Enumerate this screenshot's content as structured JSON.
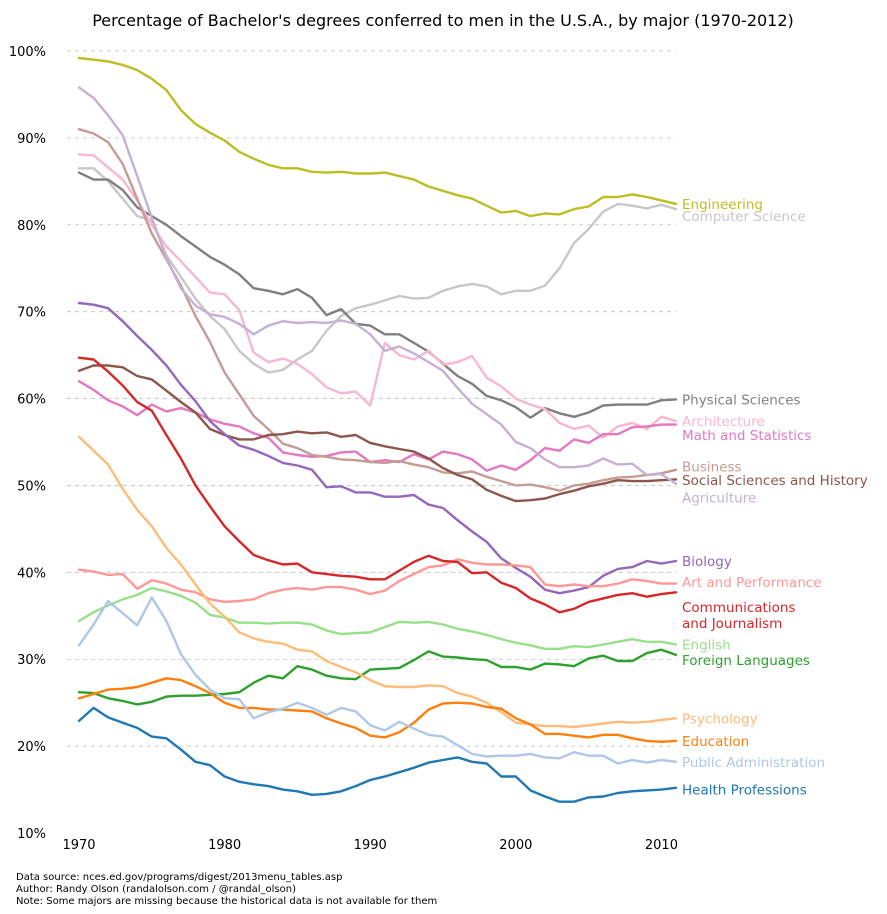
{
  "chart_data": {
    "type": "line",
    "title": "Percentage of Bachelor's degrees conferred to men in the U.S.A., by major (1970-2012)",
    "xlabel": "",
    "ylabel": "",
    "xlim": [
      1970,
      2011
    ],
    "ylim": [
      10,
      100
    ],
    "x_ticks": [
      1970,
      1980,
      1990,
      2000,
      2010
    ],
    "y_ticks": [
      10,
      20,
      30,
      40,
      50,
      60,
      70,
      80,
      90,
      100
    ],
    "y_tick_format": "%",
    "grid": "horizontal dashed",
    "legend": "inline labels at right end of each line",
    "x": [
      1970,
      1971,
      1972,
      1973,
      1974,
      1975,
      1976,
      1977,
      1978,
      1979,
      1980,
      1981,
      1982,
      1983,
      1984,
      1985,
      1986,
      1987,
      1988,
      1989,
      1990,
      1991,
      1992,
      1993,
      1994,
      1995,
      1996,
      1997,
      1998,
      1999,
      2000,
      2001,
      2002,
      2003,
      2004,
      2005,
      2006,
      2007,
      2008,
      2009,
      2010,
      2011
    ],
    "series": [
      {
        "name": "Engineering",
        "color": "#bcbd22",
        "values": [
          99.2,
          99.0,
          98.8,
          98.4,
          97.8,
          96.8,
          95.5,
          93.2,
          91.6,
          90.6,
          89.7,
          88.4,
          87.6,
          86.9,
          86.5,
          86.5,
          86.1,
          86.0,
          86.1,
          85.9,
          85.9,
          86.0,
          85.6,
          85.2,
          84.4,
          83.9,
          83.4,
          83.0,
          82.2,
          81.4,
          81.6,
          81.0,
          81.3,
          81.2,
          81.8,
          82.1,
          83.2,
          83.2,
          83.5,
          83.2,
          82.8,
          82.4
        ],
        "label_y": 82.4
      },
      {
        "name": "Computer Science",
        "color": "#c7c7c7",
        "values": [
          86.5,
          86.5,
          85.0,
          83.0,
          81.0,
          80.5,
          76.5,
          74.0,
          71.5,
          69.5,
          68.0,
          65.5,
          64.0,
          63.0,
          63.3,
          64.5,
          65.5,
          67.8,
          69.5,
          70.4,
          70.8,
          71.3,
          71.8,
          71.5,
          71.6,
          72.4,
          72.9,
          73.2,
          72.9,
          72.0,
          72.4,
          72.4,
          73.0,
          75.0,
          77.9,
          79.5,
          81.5,
          82.4,
          82.2,
          81.9,
          82.3,
          81.8
        ],
        "label_y": 81.0
      },
      {
        "name": "Physical Sciences",
        "color": "#7f7f7f",
        "values": [
          86.0,
          85.2,
          85.2,
          84.0,
          82.0,
          81.0,
          80.0,
          78.7,
          77.5,
          76.3,
          75.4,
          74.3,
          72.7,
          72.4,
          72.0,
          72.6,
          71.6,
          69.6,
          70.3,
          68.6,
          68.4,
          67.4,
          67.4,
          66.4,
          65.4,
          64.0,
          62.6,
          61.7,
          60.3,
          59.8,
          59.0,
          57.8,
          58.9,
          58.3,
          57.9,
          58.4,
          59.2,
          59.3,
          59.3,
          59.3,
          59.8,
          59.9
        ],
        "label_y": 59.9
      },
      {
        "name": "Architecture",
        "color": "#f7b6d2",
        "values": [
          88.1,
          88.0,
          86.6,
          85.2,
          82.8,
          80.0,
          77.5,
          75.8,
          74.0,
          72.2,
          72.0,
          70.2,
          65.3,
          64.2,
          64.6,
          64.0,
          62.8,
          61.3,
          60.6,
          60.8,
          59.2,
          66.4,
          65.0,
          64.5,
          65.5,
          63.9,
          64.2,
          64.9,
          62.4,
          61.4,
          60.0,
          59.3,
          58.8,
          57.2,
          56.5,
          56.9,
          55.5,
          56.8,
          57.2,
          56.5,
          57.9,
          57.4
        ],
        "label_y": 57.4
      },
      {
        "name": "Math and Statistics",
        "color": "#e377c2",
        "values": [
          62.0,
          61.0,
          59.8,
          59.1,
          58.1,
          59.3,
          58.5,
          58.9,
          58.4,
          57.6,
          57.1,
          56.8,
          56.0,
          55.5,
          53.8,
          53.5,
          53.3,
          53.4,
          53.8,
          53.9,
          52.7,
          52.9,
          52.7,
          53.6,
          53.0,
          53.9,
          53.6,
          53.0,
          51.7,
          52.3,
          51.8,
          52.9,
          54.3,
          54.0,
          55.3,
          54.9,
          55.9,
          55.9,
          56.7,
          56.8,
          57.0,
          57.0
        ],
        "label_y": 55.8
      },
      {
        "name": "Business",
        "color": "#c49c94",
        "values": [
          91.0,
          90.5,
          89.5,
          87.0,
          83.0,
          79.0,
          76.0,
          73.0,
          69.5,
          66.5,
          63.0,
          60.5,
          58.0,
          56.5,
          54.8,
          54.3,
          53.5,
          53.3,
          53.0,
          52.9,
          52.7,
          52.6,
          52.8,
          52.4,
          52.1,
          51.5,
          51.4,
          51.6,
          51.0,
          50.5,
          50.0,
          50.1,
          49.8,
          49.4,
          50.0,
          50.2,
          50.6,
          50.9,
          51.0,
          51.2,
          51.4,
          51.8
        ],
        "label_y": 52.2
      },
      {
        "name": "Social Sciences and History",
        "color": "#8c564b",
        "values": [
          63.2,
          63.8,
          63.8,
          63.6,
          62.6,
          62.2,
          60.9,
          59.6,
          58.4,
          56.5,
          55.8,
          55.3,
          55.3,
          55.8,
          55.9,
          56.2,
          56.0,
          56.1,
          55.6,
          55.8,
          54.9,
          54.5,
          54.2,
          53.9,
          53.1,
          52.0,
          51.2,
          50.7,
          49.5,
          48.8,
          48.2,
          48.3,
          48.5,
          49.0,
          49.4,
          49.9,
          50.2,
          50.6,
          50.5,
          50.5,
          50.6,
          50.7
        ],
        "label_y": 50.6
      },
      {
        "name": "Agriculture",
        "color": "#c5b0d5",
        "values": [
          95.8,
          94.6,
          92.6,
          90.3,
          85.6,
          80.8,
          76.2,
          72.7,
          70.7,
          69.7,
          69.4,
          68.6,
          67.4,
          68.4,
          68.9,
          68.7,
          68.8,
          68.7,
          69.0,
          68.6,
          67.4,
          65.5,
          66.0,
          65.2,
          64.2,
          63.2,
          61.2,
          59.4,
          58.2,
          57.0,
          55.0,
          54.3,
          53.0,
          52.1,
          52.1,
          52.3,
          53.1,
          52.4,
          52.5,
          51.2,
          51.3,
          50.2
        ],
        "label_y": 48.6
      },
      {
        "name": "Biology",
        "color": "#9467bd",
        "values": [
          71.0,
          70.8,
          70.4,
          68.9,
          67.2,
          65.6,
          63.8,
          61.6,
          59.7,
          57.4,
          55.9,
          54.6,
          54.1,
          53.4,
          52.6,
          52.3,
          51.8,
          49.8,
          49.9,
          49.2,
          49.2,
          48.7,
          48.7,
          48.9,
          47.8,
          47.4,
          46.0,
          44.7,
          43.5,
          41.6,
          40.5,
          39.5,
          38.0,
          37.6,
          37.9,
          38.3,
          39.6,
          40.4,
          40.6,
          41.3,
          41.0,
          41.3
        ],
        "label_y": 41.3
      },
      {
        "name": "Art and Performance",
        "color": "#ff9896",
        "values": [
          40.3,
          40.1,
          39.7,
          39.8,
          38.1,
          39.1,
          38.7,
          38.0,
          37.7,
          36.9,
          36.6,
          36.7,
          36.9,
          37.6,
          38.0,
          38.2,
          38.0,
          38.3,
          38.3,
          38.0,
          37.5,
          37.9,
          39.0,
          39.8,
          40.6,
          40.8,
          41.5,
          41.1,
          40.9,
          40.9,
          40.8,
          40.6,
          38.6,
          38.4,
          38.6,
          38.4,
          38.4,
          38.7,
          39.2,
          39.0,
          38.7,
          38.7
        ],
        "label_y": 38.9
      },
      {
        "name": "Communications\nand Journalism",
        "color": "#d62728",
        "values": [
          64.7,
          64.5,
          63.1,
          61.5,
          59.6,
          58.6,
          55.8,
          53.1,
          50.0,
          47.6,
          45.3,
          43.6,
          42.0,
          41.4,
          40.9,
          41.0,
          40.0,
          39.8,
          39.6,
          39.5,
          39.2,
          39.2,
          40.2,
          41.2,
          41.9,
          41.3,
          41.2,
          39.9,
          40.0,
          38.8,
          38.2,
          37.0,
          36.3,
          35.4,
          35.8,
          36.6,
          37.0,
          37.4,
          37.6,
          37.2,
          37.5,
          37.7
        ],
        "label_y": 36.0
      },
      {
        "name": "English",
        "color": "#98df8a",
        "values": [
          34.4,
          35.4,
          36.2,
          36.9,
          37.4,
          38.2,
          37.8,
          37.3,
          36.5,
          35.1,
          34.8,
          34.2,
          34.2,
          34.1,
          34.2,
          34.2,
          34.0,
          33.3,
          32.9,
          33.0,
          33.1,
          33.7,
          34.3,
          34.2,
          34.3,
          34.0,
          33.5,
          33.2,
          32.8,
          32.3,
          31.9,
          31.6,
          31.2,
          31.2,
          31.5,
          31.4,
          31.7,
          32.0,
          32.3,
          32.0,
          32.0,
          31.7
        ],
        "label_y": 31.7
      },
      {
        "name": "Foreign Languages",
        "color": "#2ca02c",
        "values": [
          26.2,
          26.1,
          25.5,
          25.2,
          24.8,
          25.1,
          25.7,
          25.8,
          25.8,
          25.9,
          26.0,
          26.2,
          27.3,
          28.1,
          27.8,
          29.2,
          28.8,
          28.1,
          27.8,
          27.7,
          28.8,
          28.9,
          29.0,
          29.9,
          30.9,
          30.3,
          30.2,
          30.0,
          29.9,
          29.1,
          29.1,
          28.8,
          29.5,
          29.4,
          29.2,
          30.1,
          30.4,
          29.8,
          29.8,
          30.7,
          31.1,
          30.5
        ],
        "label_y": 29.9
      },
      {
        "name": "Psychology",
        "color": "#ffbb78",
        "values": [
          55.6,
          54.0,
          52.4,
          49.6,
          47.2,
          45.3,
          42.8,
          40.9,
          38.6,
          36.4,
          34.9,
          33.1,
          32.4,
          32.0,
          31.8,
          31.1,
          30.9,
          29.8,
          29.1,
          28.5,
          27.6,
          26.9,
          26.8,
          26.8,
          27.0,
          26.9,
          26.1,
          25.7,
          25.0,
          23.9,
          22.7,
          22.5,
          22.3,
          22.3,
          22.2,
          22.4,
          22.6,
          22.8,
          22.7,
          22.8,
          23.0,
          23.2
        ],
        "label_y": 23.2
      },
      {
        "name": "Education",
        "color": "#ff7f0e",
        "values": [
          25.5,
          26.0,
          26.5,
          26.6,
          26.8,
          27.3,
          27.8,
          27.6,
          26.9,
          26.1,
          25.0,
          24.4,
          24.4,
          24.2,
          24.2,
          24.1,
          24.0,
          23.2,
          22.6,
          22.1,
          21.2,
          21.0,
          21.6,
          22.7,
          24.2,
          24.9,
          25.0,
          24.9,
          24.5,
          24.3,
          23.2,
          22.5,
          21.4,
          21.4,
          21.2,
          21.0,
          21.3,
          21.3,
          20.9,
          20.6,
          20.5,
          20.6
        ],
        "label_y": 20.6
      },
      {
        "name": "Public Administration",
        "color": "#aec7e8",
        "values": [
          31.6,
          34.0,
          36.7,
          35.3,
          33.9,
          37.1,
          34.4,
          30.6,
          28.2,
          26.5,
          25.5,
          25.4,
          23.2,
          23.9,
          24.3,
          25.0,
          24.4,
          23.6,
          24.4,
          24.0,
          22.4,
          21.8,
          22.8,
          22.0,
          21.3,
          21.1,
          20.1,
          19.1,
          18.8,
          18.9,
          18.9,
          19.1,
          18.7,
          18.6,
          19.3,
          18.9,
          18.9,
          18.0,
          18.4,
          18.1,
          18.4,
          18.2
        ],
        "label_y": 18.2
      },
      {
        "name": "Health Professions",
        "color": "#1f77b4",
        "values": [
          22.9,
          24.4,
          23.3,
          22.7,
          22.1,
          21.1,
          20.9,
          19.6,
          18.2,
          17.8,
          16.5,
          15.9,
          15.6,
          15.4,
          15.0,
          14.8,
          14.4,
          14.5,
          14.8,
          15.4,
          16.1,
          16.5,
          17.0,
          17.5,
          18.1,
          18.4,
          18.7,
          18.2,
          18.0,
          16.5,
          16.5,
          14.9,
          14.2,
          13.6,
          13.6,
          14.1,
          14.2,
          14.6,
          14.8,
          14.9,
          15.0,
          15.2
        ],
        "label_y": 15.0
      }
    ]
  },
  "footer": {
    "line1": "Data source: nces.ed.gov/programs/digest/2013menu_tables.asp",
    "line2": "Author: Randy Olson (randalolson.com / @randal_olson)",
    "line3": "Note: Some majors are missing because the historical data is not available for them"
  }
}
